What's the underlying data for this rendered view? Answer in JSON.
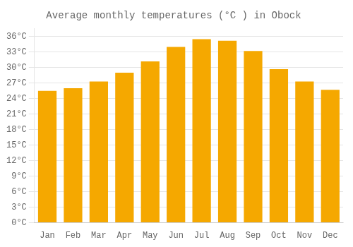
{
  "chart_data": {
    "type": "bar",
    "title": "Average monthly temperatures (°C ) in Obock",
    "categories": [
      "Jan",
      "Feb",
      "Mar",
      "Apr",
      "May",
      "Jun",
      "Jul",
      "Aug",
      "Sep",
      "Oct",
      "Nov",
      "Dec"
    ],
    "values": [
      25.5,
      26.0,
      27.3,
      29.0,
      31.2,
      34.0,
      35.5,
      35.2,
      33.2,
      29.7,
      27.3,
      25.7
    ],
    "color": "#F5A800",
    "ylim": [
      0,
      37.5
    ],
    "yticks": [
      {
        "value": 0,
        "label": "0°C"
      },
      {
        "value": 3,
        "label": "3°C"
      },
      {
        "value": 6,
        "label": "6°C"
      },
      {
        "value": 9,
        "label": "9°C"
      },
      {
        "value": 12,
        "label": "12°C"
      },
      {
        "value": 15,
        "label": "15°C"
      },
      {
        "value": 18,
        "label": "18°C"
      },
      {
        "value": 21,
        "label": "21°C"
      },
      {
        "value": 24,
        "label": "24°C"
      },
      {
        "value": 27,
        "label": "27°C"
      },
      {
        "value": 30,
        "label": "30°C"
      },
      {
        "value": 33,
        "label": "33°C"
      },
      {
        "value": 36,
        "label": "36°C"
      }
    ],
    "grid": true
  }
}
